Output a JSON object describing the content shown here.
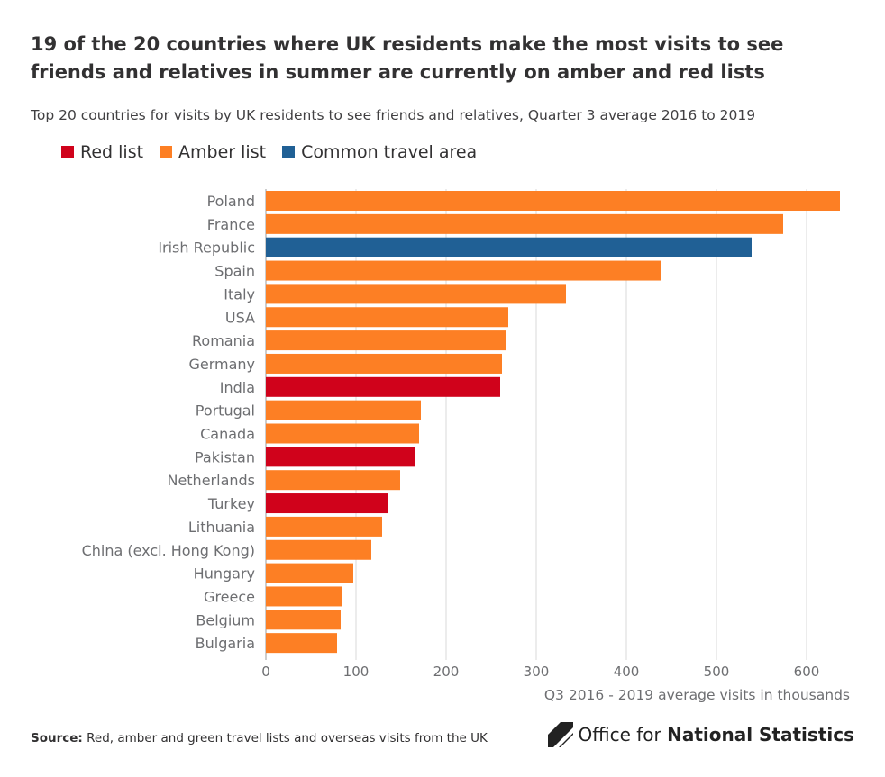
{
  "title": "19 of the 20 countries where UK residents make the most visits to see friends and relatives in summer are currently on amber and red lists",
  "subtitle": "Top 20 countries for visits by UK residents to see friends and relatives, Quarter 3 average 2016 to 2019",
  "legend": [
    {
      "key": "red",
      "label": "Red list",
      "color": "#d0021b"
    },
    {
      "key": "amber",
      "label": "Amber list",
      "color": "#fd7f24"
    },
    {
      "key": "cta",
      "label": "Common travel area",
      "color": "#206095"
    }
  ],
  "chart_data": {
    "type": "bar",
    "orientation": "horizontal",
    "categories": [
      "Poland",
      "France",
      "Irish Republic",
      "Spain",
      "Italy",
      "USA",
      "Romania",
      "Germany",
      "India",
      "Portugal",
      "Canada",
      "Pakistan",
      "Netherlands",
      "Turkey",
      "Lithuania",
      "China (excl. Hong Kong)",
      "Hungary",
      "Greece",
      "Belgium",
      "Bulgaria"
    ],
    "values": [
      637,
      574,
      539,
      438,
      333,
      269,
      266,
      262,
      260,
      172,
      170,
      166,
      149,
      135,
      129,
      117,
      97,
      84,
      83,
      79
    ],
    "groups": [
      "amber",
      "amber",
      "cta",
      "amber",
      "amber",
      "amber",
      "amber",
      "amber",
      "red",
      "amber",
      "amber",
      "red",
      "amber",
      "red",
      "amber",
      "amber",
      "amber",
      "amber",
      "amber",
      "amber"
    ],
    "xlabel": "Q3 2016 - 2019 average visits in thousands",
    "xlim": [
      0,
      650
    ],
    "xticks": [
      0,
      100,
      200,
      300,
      400,
      500,
      600
    ],
    "xtick_labels": [
      "0",
      "100",
      "200",
      "300",
      "400",
      "500",
      "600"
    ],
    "grid": true
  },
  "footer": {
    "source_label": "Source:",
    "source_text": " Red, amber and green travel lists and overseas visits from the UK",
    "ons_prefix": "Office for ",
    "ons_bold": "National Statistics"
  }
}
